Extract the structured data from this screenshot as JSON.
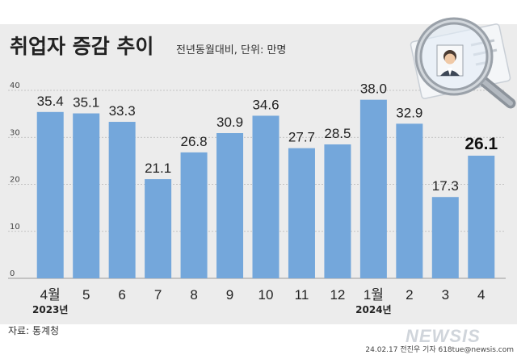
{
  "chart_data": {
    "type": "bar",
    "title": "취업자 증감 추이",
    "subtitle": "전년동월대비, 단위: 만명",
    "categories": [
      "4월",
      "5",
      "6",
      "7",
      "8",
      "9",
      "10",
      "11",
      "12",
      "1월",
      "2",
      "3",
      "4"
    ],
    "values": [
      35.4,
      35.1,
      33.3,
      21.1,
      26.8,
      30.9,
      34.6,
      27.7,
      28.5,
      38.0,
      32.9,
      17.3,
      26.1
    ],
    "value_labels": [
      "35.4",
      "35.1",
      "33.3",
      "21.1",
      "26.8",
      "30.9",
      "34.6",
      "27.7",
      "28.5",
      "38.0",
      "32.9",
      "17.3",
      "26.1"
    ],
    "highlight_index": 12,
    "year_labels": [
      {
        "index": 0,
        "text": "2023년"
      },
      {
        "index": 9,
        "text": "2024년"
      }
    ],
    "yticks": [
      0,
      10,
      20,
      30,
      40
    ],
    "ylim": [
      0,
      40
    ],
    "grid": true,
    "bar_color": "#74a7db",
    "background_color": "#ececec"
  },
  "source": "자료: 통계청",
  "credit": "24.02.17 전진우 기자 618tue@newsis.com",
  "logo": "NEWSIS"
}
